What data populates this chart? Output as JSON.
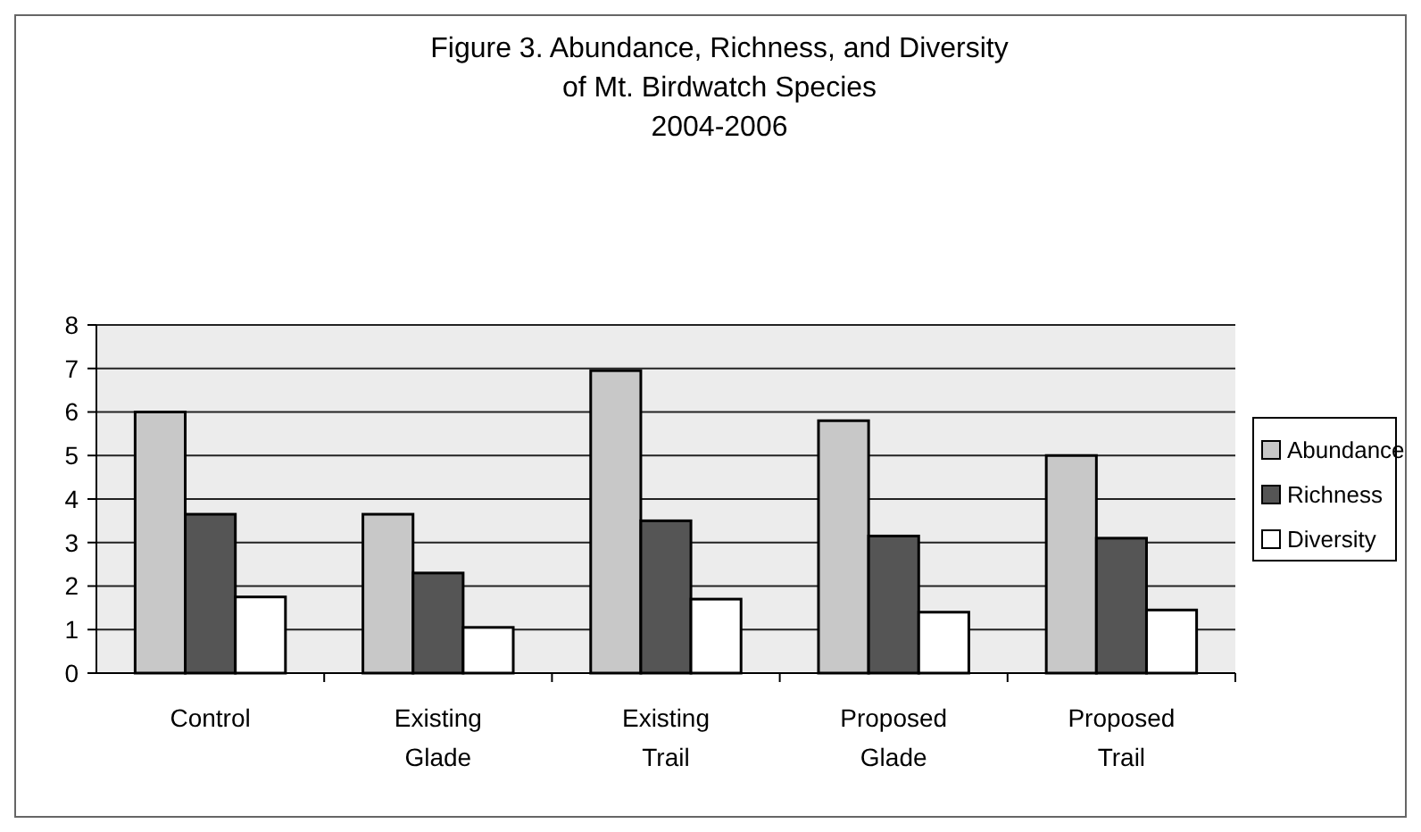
{
  "chart_data": {
    "type": "bar",
    "title": "Figure 3.  Abundance, Richness, and Diversity\nof Mt. Birdwatch Species\n2004-2006",
    "categories": [
      "Control",
      "Existing\nGlade",
      "Existing\nTrail",
      "Proposed\nGlade",
      "Proposed\nTrail"
    ],
    "series": [
      {
        "name": "Abundance",
        "color": "#c8c8c8",
        "values": [
          6.0,
          3.65,
          6.95,
          5.8,
          5.0
        ]
      },
      {
        "name": "Richness",
        "color": "#555555",
        "values": [
          3.65,
          2.3,
          3.5,
          3.15,
          3.1
        ]
      },
      {
        "name": "Diversity",
        "color": "#ffffff",
        "values": [
          1.75,
          1.05,
          1.7,
          1.4,
          1.45
        ]
      }
    ],
    "ylim": [
      0,
      8
    ],
    "yticks": [
      0,
      1,
      2,
      3,
      4,
      5,
      6,
      7,
      8
    ],
    "grid": "y",
    "legend": "right"
  }
}
